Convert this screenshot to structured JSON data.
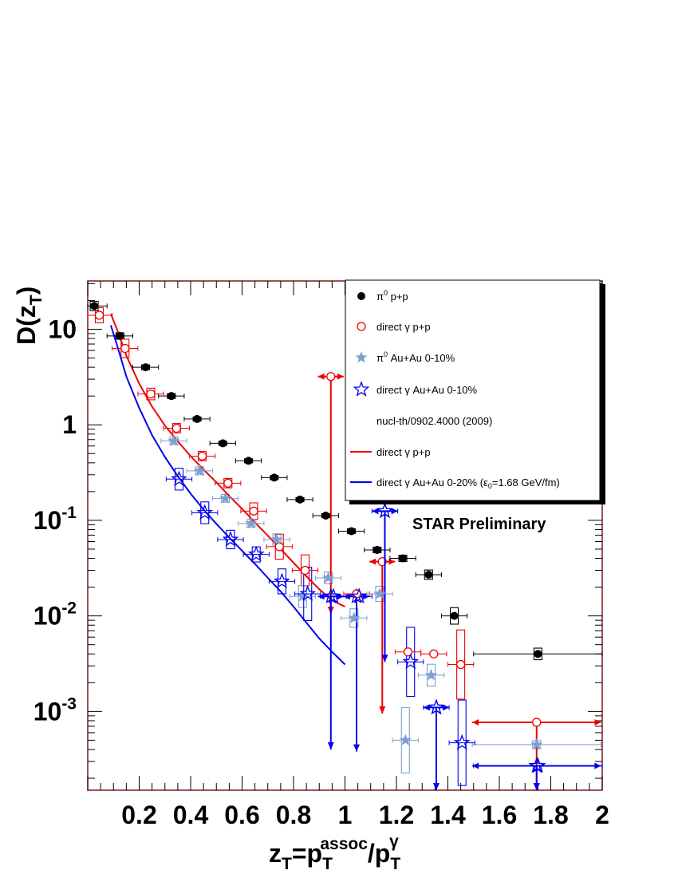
{
  "chart_data": {
    "type": "scatter",
    "y_log": true,
    "xlim": [
      0,
      2
    ],
    "ylim": [
      0.00015,
      32
    ],
    "x_ticks": [
      {
        "v": 0.2,
        "label": "0.2"
      },
      {
        "v": 0.4,
        "label": "0.4"
      },
      {
        "v": 0.6,
        "label": "0.6"
      },
      {
        "v": 0.8,
        "label": "0.8"
      },
      {
        "v": 1.0,
        "label": "1"
      },
      {
        "v": 1.2,
        "label": "1.2"
      },
      {
        "v": 1.4,
        "label": "1.4"
      },
      {
        "v": 1.6,
        "label": "1.6"
      },
      {
        "v": 1.8,
        "label": "1.8"
      },
      {
        "v": 2.0,
        "label": "2"
      }
    ],
    "y_ticks": [
      {
        "v": 10,
        "base": "10",
        "exp": ""
      },
      {
        "v": 1,
        "base": "1",
        "exp": ""
      },
      {
        "v": 0.1,
        "base": "10",
        "exp": "-1"
      },
      {
        "v": 0.01,
        "base": "10",
        "exp": "-2"
      },
      {
        "v": 0.001,
        "base": "10",
        "exp": "-3"
      }
    ],
    "xlabel": {
      "main": "z",
      "sub1": "T",
      "eq": "=p",
      "sub2": "T",
      "sup2": "assoc",
      "slash": "/p",
      "sub3": "T",
      "sup3": "γ"
    },
    "ylabel": {
      "main": "D(z",
      "sub": "T",
      "close": ")"
    },
    "annotation": "STAR Preliminary",
    "legend": [
      {
        "key": "pi0_pp",
        "marker": "filled-circle",
        "color": "#000000",
        "label_pre": "π",
        "label_sup": "0",
        "label_post": " p+p"
      },
      {
        "key": "gamma_pp",
        "marker": "open-circle",
        "color": "#ee0000",
        "label_pre": "direct γ p+p",
        "label_sup": "",
        "label_post": ""
      },
      {
        "key": "pi0_auau",
        "marker": "filled-star",
        "color": "#7f9fcf",
        "label_pre": "π",
        "label_sup": "0",
        "label_post": " Au+Au 0-10%"
      },
      {
        "key": "gamma_auau",
        "marker": "open-star",
        "color": "#0000ee",
        "label_pre": "direct γ Au+Au 0-10%",
        "label_sup": "",
        "label_post": ""
      },
      {
        "key": "ref",
        "marker": "none",
        "color": "#000000",
        "label_pre": "nucl-th/0902.4000 (2009)",
        "label_sup": "",
        "label_post": ""
      },
      {
        "key": "curve_pp",
        "marker": "line",
        "color": "#ee0000",
        "label_pre": "direct γ p+p",
        "label_sup": "",
        "label_post": ""
      },
      {
        "key": "curve_auau",
        "marker": "line",
        "color": "#0000ee",
        "label_pre": "direct γ Au+Au 0-20% (ε",
        "label_sub": "0",
        "label_post": "=1.68 GeV/fm)"
      }
    ],
    "series": [
      {
        "name": "π0 p+p",
        "marker": "filled-circle",
        "color": "#000000",
        "x": [
          0.025,
          0.125,
          0.225,
          0.325,
          0.425,
          0.525,
          0.625,
          0.725,
          0.825,
          0.925,
          1.025,
          1.125,
          1.225,
          1.325,
          1.425,
          1.75
        ],
        "y": [
          17.5,
          8.5,
          4.0,
          2.0,
          1.15,
          0.64,
          0.42,
          0.28,
          0.165,
          0.112,
          0.077,
          0.049,
          0.04,
          0.027,
          0.01,
          0.004
        ],
        "xerr": [
          0.05,
          0.05,
          0.05,
          0.05,
          0.05,
          0.05,
          0.05,
          0.05,
          0.05,
          0.05,
          0.05,
          0.05,
          0.05,
          0.05,
          0.05,
          0.25
        ],
        "syst": [
          0.12,
          0.08,
          0.06,
          0.06,
          0.05,
          0.05,
          0.05,
          0.05,
          0.05,
          0.05,
          0.06,
          0.07,
          0.08,
          0.12,
          0.22,
          0.15
        ]
      },
      {
        "name": "direct γ p+p",
        "marker": "open-circle",
        "color": "#ee0000",
        "x": [
          0.045,
          0.145,
          0.245,
          0.345,
          0.445,
          0.545,
          0.645,
          0.745,
          0.845,
          1.045,
          1.245,
          1.345,
          1.45
        ],
        "y": [
          14.0,
          6.3,
          2.1,
          0.92,
          0.47,
          0.245,
          0.125,
          0.053,
          0.03,
          0.017,
          0.0042,
          0.004,
          0.0031
        ],
        "xerr": [
          0.05,
          0.05,
          0.05,
          0.05,
          0.05,
          0.05,
          0.05,
          0.05,
          0.05,
          0.05,
          0.05,
          0.05,
          0.05
        ],
        "syst": [
          0.2,
          0.25,
          0.15,
          0.12,
          0.12,
          0.12,
          0.22,
          0.35,
          0.45,
          0.0,
          0.0,
          0.0,
          1.3
        ]
      },
      {
        "name": "π0 Au+Au 0-10%",
        "marker": "filled-star",
        "color": "#7f9fcf",
        "x": [
          0.335,
          0.435,
          0.535,
          0.635,
          0.735,
          0.835,
          0.935,
          1.035,
          1.135,
          1.235,
          1.335,
          1.745
        ],
        "y": [
          0.68,
          0.33,
          0.17,
          0.093,
          0.063,
          0.016,
          0.025,
          0.0095,
          0.017,
          0.0005,
          0.0024,
          0.00045
        ],
        "xerr": [
          0.05,
          0.05,
          0.05,
          0.05,
          0.05,
          0.05,
          0.05,
          0.05,
          0.05,
          0.05,
          0.05,
          0.25
        ],
        "syst": [
          0.1,
          0.1,
          0.1,
          0.1,
          0.15,
          0.3,
          0.15,
          0.25,
          0.2,
          1.2,
          0.3,
          0.1
        ]
      },
      {
        "name": "direct γ Au+Au 0-10%",
        "marker": "open-star",
        "color": "#0000ee",
        "x": [
          0.355,
          0.455,
          0.555,
          0.655,
          0.755,
          0.855,
          0.955,
          1.055,
          1.155,
          1.255,
          1.355,
          1.455,
          1.75
        ],
        "y": [
          0.27,
          0.12,
          0.063,
          0.044,
          0.023,
          0.017,
          0.016,
          0.016,
          0.125,
          0.0033,
          0.0011,
          0.00047,
          0.00027
        ],
        "xerr": [
          0.05,
          0.05,
          0.05,
          0.05,
          0.05,
          0.05,
          0.05,
          0.05,
          0.05,
          0.05,
          0.05,
          0.05,
          0.25
        ],
        "syst": [
          0.3,
          0.3,
          0.25,
          0.2,
          0.35,
          0.9,
          0.0,
          0.0,
          0.0,
          1.3,
          0.0,
          1.8,
          0.0
        ]
      }
    ],
    "upper_limits": [
      {
        "series": "direct γ p+p",
        "color": "#ee0000",
        "x": 0.945,
        "y": 3.2,
        "y_to": 0.0105
      },
      {
        "series": "direct γ p+p",
        "color": "#ee0000",
        "x": 1.145,
        "y": 0.037,
        "y_to": 0.00095
      },
      {
        "series": "direct γ p+p",
        "color": "#ee0000",
        "x": 1.745,
        "y": 0.00077,
        "y_to": 0.00015
      },
      {
        "series": "direct γ Au+Au 0-10%",
        "color": "#0000ee",
        "x": 0.945,
        "y": 0.016,
        "y_to": 0.0004
      },
      {
        "series": "direct γ Au+Au 0-10%",
        "color": "#0000ee",
        "x": 1.045,
        "y": 0.016,
        "y_to": 0.00038
      },
      {
        "series": "direct γ Au+Au 0-10%",
        "color": "#0000ee",
        "x": 1.155,
        "y": 0.125,
        "y_to": 0.0033
      },
      {
        "series": "direct γ Au+Au 0-10%",
        "color": "#0000ee",
        "x": 1.355,
        "y": 0.0011,
        "y_to": 0.00015
      },
      {
        "series": "direct γ Au+Au 0-10%",
        "color": "#0000ee",
        "x": 1.745,
        "y": 0.00027,
        "y_to": 0.00015
      }
    ],
    "curves": [
      {
        "name": "direct γ p+p",
        "color": "#ee0000",
        "x": [
          0.09,
          0.12,
          0.15,
          0.2,
          0.25,
          0.3,
          0.35,
          0.4,
          0.45,
          0.5,
          0.55,
          0.6,
          0.65,
          0.7,
          0.75,
          0.8,
          0.85,
          0.9,
          0.95,
          1.0
        ],
        "y": [
          14.5,
          9.0,
          5.3,
          2.7,
          1.55,
          0.98,
          0.67,
          0.47,
          0.34,
          0.25,
          0.18,
          0.132,
          0.095,
          0.069,
          0.05,
          0.036,
          0.026,
          0.019,
          0.0145,
          0.0125
        ]
      },
      {
        "name": "direct γ Au+Au 0-20%",
        "color": "#0000ee",
        "x": [
          0.09,
          0.12,
          0.15,
          0.2,
          0.25,
          0.3,
          0.35,
          0.4,
          0.45,
          0.5,
          0.55,
          0.6,
          0.65,
          0.7,
          0.75,
          0.8,
          0.85,
          0.9,
          0.95,
          1.0
        ],
        "y": [
          11.0,
          6.0,
          3.2,
          1.5,
          0.78,
          0.46,
          0.29,
          0.19,
          0.13,
          0.092,
          0.066,
          0.048,
          0.035,
          0.025,
          0.018,
          0.0125,
          0.0085,
          0.0058,
          0.0042,
          0.0031
        ]
      }
    ]
  }
}
